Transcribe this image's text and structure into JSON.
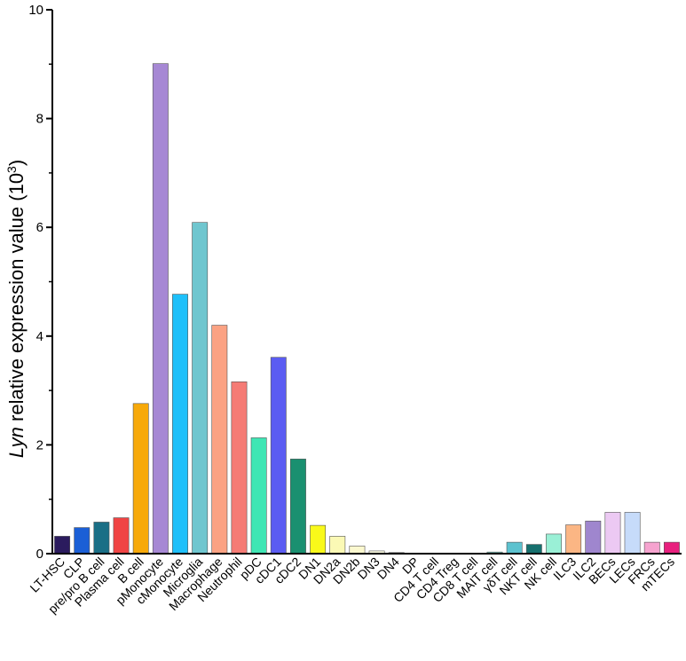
{
  "chart_data": {
    "type": "bar",
    "title": "",
    "xlabel": "",
    "ylabel_italic": "Lyn",
    "ylabel_rest": " relative expression value (10",
    "ylabel_exp": "3",
    "ylabel_close": ")",
    "ylim": [
      0,
      10
    ],
    "yticks": [
      0,
      2,
      4,
      6,
      8,
      10
    ],
    "categories": [
      "LT-HSC",
      "CLP",
      "pre/pro B cell",
      "Plasma cell",
      "B cell",
      "pMonocyte",
      "cMonocyte",
      "Microglia",
      "Macrophage",
      "Neutrophil",
      "pDC",
      "cDC1",
      "cDC2",
      "DN1",
      "DN2a",
      "DN2b",
      "DN3",
      "DN4",
      "DP",
      "CD4 T cell",
      "CD4 Treg",
      "CD8 T cell",
      "MAIT cell",
      "γδT cell",
      "NKT cell",
      "NK cell",
      "ILC3",
      "ILC2",
      "BECs",
      "LECs",
      "FRCs",
      "mTECs"
    ],
    "values": [
      0.32,
      0.48,
      0.58,
      0.66,
      2.76,
      9.01,
      4.77,
      6.09,
      4.2,
      3.16,
      2.13,
      3.61,
      1.74,
      0.52,
      0.32,
      0.14,
      0.05,
      0.02,
      0.0,
      0.0,
      0.0,
      0.0,
      0.03,
      0.21,
      0.17,
      0.36,
      0.53,
      0.6,
      0.76,
      0.76,
      0.21,
      0.21
    ],
    "colors": [
      "#2b1b5e",
      "#1b5fd6",
      "#1a6f86",
      "#f04444",
      "#f7a90a",
      "#a688d4",
      "#1ec0fa",
      "#6fc6cf",
      "#fba283",
      "#f57b75",
      "#3fe6b4",
      "#5b5cf2",
      "#1a9070",
      "#f9f91a",
      "#fbf9b5",
      "#fbf8cf",
      "#fbfbe2",
      "#fbfbe6",
      "#f0f0f0",
      "#f0f0f0",
      "#f0f0f0",
      "#f0f0f0",
      "#7fd0c8",
      "#5cc2cf",
      "#16706e",
      "#9af0d6",
      "#fbb684",
      "#9f86ce",
      "#ecc9f3",
      "#c6dbfa",
      "#f6a3cf",
      "#e8207e"
    ]
  }
}
